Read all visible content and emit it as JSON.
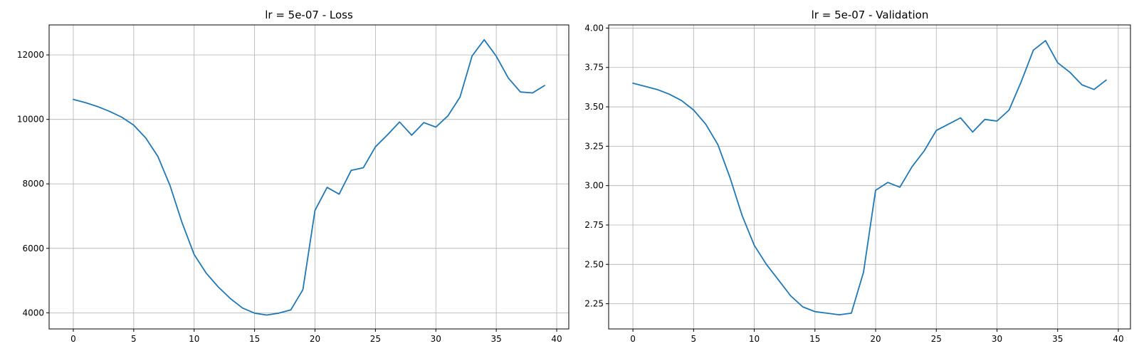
{
  "chart_data": [
    {
      "type": "line",
      "title": "lr = 5e-07 - Loss",
      "xlabel": "",
      "ylabel": "",
      "grid": true,
      "xlim": [
        -2,
        41
      ],
      "ylim": [
        3500,
        12930
      ],
      "xticks": [
        0,
        5,
        10,
        15,
        20,
        25,
        30,
        35,
        40
      ],
      "yticks": [
        4000,
        6000,
        8000,
        10000,
        12000
      ],
      "xtick_labels": [
        "0",
        "5",
        "10",
        "15",
        "20",
        "25",
        "30",
        "35",
        "40"
      ],
      "ytick_labels": [
        "4000",
        "6000",
        "8000",
        "10000",
        "12000"
      ],
      "series": [
        {
          "color": "#1f77b4",
          "x": [
            0,
            1,
            2,
            3,
            4,
            5,
            6,
            7,
            8,
            9,
            10,
            11,
            12,
            13,
            14,
            15,
            16,
            17,
            18,
            19,
            20,
            21,
            22,
            23,
            24,
            25,
            26,
            27,
            28,
            29,
            30,
            31,
            32,
            33,
            34,
            35,
            36,
            37,
            38,
            39
          ],
          "y": [
            10620,
            10520,
            10400,
            10250,
            10070,
            9820,
            9420,
            8850,
            7950,
            6800,
            5810,
            5230,
            4800,
            4440,
            4150,
            3990,
            3930,
            3990,
            4090,
            4720,
            7180,
            7890,
            7680,
            8420,
            8500,
            9150,
            9520,
            9920,
            9510,
            9900,
            9760,
            10110,
            10690,
            11970,
            12470,
            11960,
            11280,
            10850,
            10820,
            11050
          ]
        }
      ]
    },
    {
      "type": "line",
      "title": "lr = 5e-07 - Validation",
      "xlabel": "",
      "ylabel": "",
      "grid": true,
      "xlim": [
        -2,
        41
      ],
      "ylim": [
        2.09,
        4.02
      ],
      "xticks": [
        0,
        5,
        10,
        15,
        20,
        25,
        30,
        35,
        40
      ],
      "yticks": [
        2.25,
        2.5,
        2.75,
        3.0,
        3.25,
        3.5,
        3.75,
        4.0
      ],
      "xtick_labels": [
        "0",
        "5",
        "10",
        "15",
        "20",
        "25",
        "30",
        "35",
        "40"
      ],
      "ytick_labels": [
        "2.25",
        "2.50",
        "2.75",
        "3.00",
        "3.25",
        "3.50",
        "3.75",
        "4.00"
      ],
      "series": [
        {
          "color": "#1f77b4",
          "x": [
            0,
            1,
            2,
            3,
            4,
            5,
            6,
            7,
            8,
            9,
            10,
            11,
            12,
            13,
            14,
            15,
            16,
            17,
            18,
            19,
            20,
            21,
            22,
            23,
            24,
            25,
            26,
            27,
            28,
            29,
            30,
            31,
            32,
            33,
            34,
            35,
            36,
            37,
            38,
            39
          ],
          "y": [
            3.65,
            3.63,
            3.61,
            3.58,
            3.54,
            3.48,
            3.39,
            3.26,
            3.05,
            2.81,
            2.62,
            2.5,
            2.4,
            2.3,
            2.23,
            2.2,
            2.19,
            2.18,
            2.19,
            2.45,
            2.97,
            3.02,
            2.99,
            3.12,
            3.22,
            3.35,
            3.39,
            3.43,
            3.34,
            3.42,
            3.41,
            3.48,
            3.66,
            3.86,
            3.92,
            3.78,
            3.72,
            3.64,
            3.61,
            3.67
          ]
        }
      ]
    }
  ]
}
